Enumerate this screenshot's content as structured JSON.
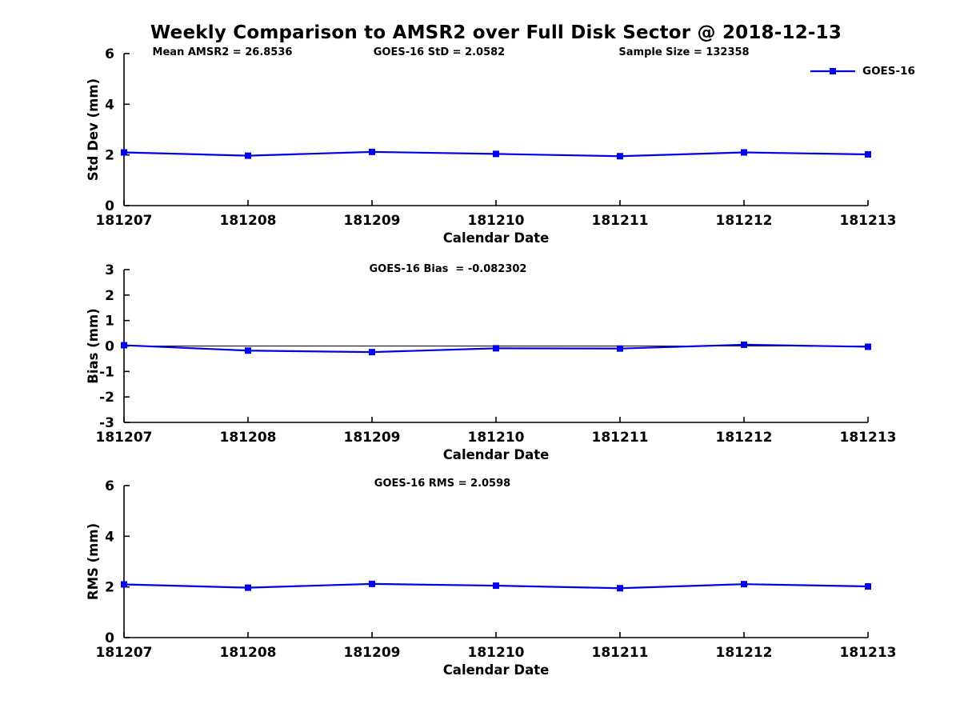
{
  "title": "Weekly Comparison to AMSR2 over Full Disk Sector @ 2018-12-13",
  "legend": {
    "label": "GOES-16",
    "color": "#0000ee",
    "position": "top-right"
  },
  "chart_data": [
    {
      "id": "std-dev",
      "type": "line",
      "title": "",
      "xlabel": "Calendar Date",
      "ylabel": "Std Dev (mm)",
      "categories": [
        "181207",
        "181208",
        "181209",
        "181210",
        "181211",
        "181212",
        "181213"
      ],
      "series": [
        {
          "name": "GOES-16",
          "values": [
            2.1,
            1.97,
            2.12,
            2.04,
            1.95,
            2.1,
            2.02
          ]
        }
      ],
      "ylim": [
        0,
        6
      ],
      "yticks": [
        0,
        2,
        4,
        6
      ],
      "grid": false,
      "zero_line": false,
      "color": "#0000ee",
      "annotations": [
        "Mean AMSR2 = 26.8536",
        "GOES-16 StD = 2.0582",
        "Sample Size = 132358"
      ],
      "legend": {
        "label": "GOES-16",
        "position": "top-right"
      }
    },
    {
      "id": "bias",
      "type": "line",
      "title": "",
      "xlabel": "Calendar Date",
      "ylabel": "Bias (mm)",
      "categories": [
        "181207",
        "181208",
        "181209",
        "181210",
        "181211",
        "181212",
        "181213"
      ],
      "series": [
        {
          "name": "GOES-16",
          "values": [
            0.03,
            -0.18,
            -0.24,
            -0.09,
            -0.1,
            0.05,
            -0.03
          ]
        }
      ],
      "ylim": [
        -3,
        3
      ],
      "yticks": [
        -3,
        -2,
        -1,
        0,
        1,
        2,
        3
      ],
      "grid": false,
      "zero_line": true,
      "color": "#0000ee",
      "annotations": [
        "GOES-16 Bias  = -0.082302"
      ]
    },
    {
      "id": "rms",
      "type": "line",
      "title": "",
      "xlabel": "Calendar Date",
      "ylabel": "RMS (mm)",
      "categories": [
        "181207",
        "181208",
        "181209",
        "181210",
        "181211",
        "181212",
        "181213"
      ],
      "series": [
        {
          "name": "GOES-16",
          "values": [
            2.1,
            1.97,
            2.12,
            2.05,
            1.95,
            2.11,
            2.02
          ]
        }
      ],
      "ylim": [
        0,
        6
      ],
      "yticks": [
        0,
        2,
        4,
        6
      ],
      "grid": false,
      "zero_line": false,
      "color": "#0000ee",
      "annotations": [
        "GOES-16 RMS = 2.0598"
      ]
    }
  ]
}
